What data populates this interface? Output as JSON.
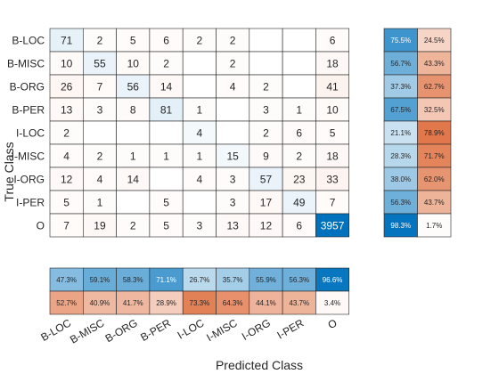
{
  "chart_data": {
    "type": "heatmap",
    "subtype": "confusion-matrix",
    "xlabel": "Predicted Class",
    "ylabel": "True Class",
    "classes": [
      "B-LOC",
      "B-MISC",
      "B-ORG",
      "B-PER",
      "I-LOC",
      "I-MISC",
      "I-ORG",
      "I-PER",
      "O"
    ],
    "matrix": [
      [
        71,
        2,
        5,
        6,
        2,
        2,
        null,
        null,
        6
      ],
      [
        10,
        55,
        10,
        2,
        null,
        2,
        null,
        null,
        18
      ],
      [
        26,
        7,
        56,
        14,
        null,
        4,
        2,
        null,
        41
      ],
      [
        13,
        3,
        8,
        81,
        1,
        null,
        3,
        1,
        10
      ],
      [
        2,
        null,
        null,
        null,
        4,
        null,
        2,
        6,
        5
      ],
      [
        4,
        2,
        1,
        1,
        1,
        15,
        9,
        2,
        18
      ],
      [
        12,
        4,
        14,
        null,
        4,
        3,
        57,
        23,
        33
      ],
      [
        5,
        1,
        null,
        5,
        null,
        3,
        17,
        49,
        7
      ],
      [
        7,
        19,
        2,
        5,
        3,
        13,
        12,
        6,
        3957
      ]
    ],
    "row_summary": {
      "correct": [
        "75.5%",
        "56.7%",
        "37.3%",
        "67.5%",
        "21.1%",
        "28.3%",
        "38.0%",
        "56.3%",
        "98.3%"
      ],
      "incorrect": [
        "24.5%",
        "43.3%",
        "62.7%",
        "32.5%",
        "78.9%",
        "71.7%",
        "62.0%",
        "43.7%",
        "1.7%"
      ]
    },
    "column_summary": {
      "correct": [
        "47.3%",
        "59.1%",
        "58.3%",
        "71.1%",
        "26.7%",
        "35.7%",
        "55.9%",
        "56.3%",
        "96.6%"
      ],
      "incorrect": [
        "52.7%",
        "40.9%",
        "41.7%",
        "28.9%",
        "73.3%",
        "64.3%",
        "44.1%",
        "43.7%",
        "3.4%"
      ]
    },
    "colors": {
      "correct_full": "#0072bd",
      "incorrect_full": "#d95319",
      "background": "#ffffff",
      "grid": "#262626"
    }
  }
}
